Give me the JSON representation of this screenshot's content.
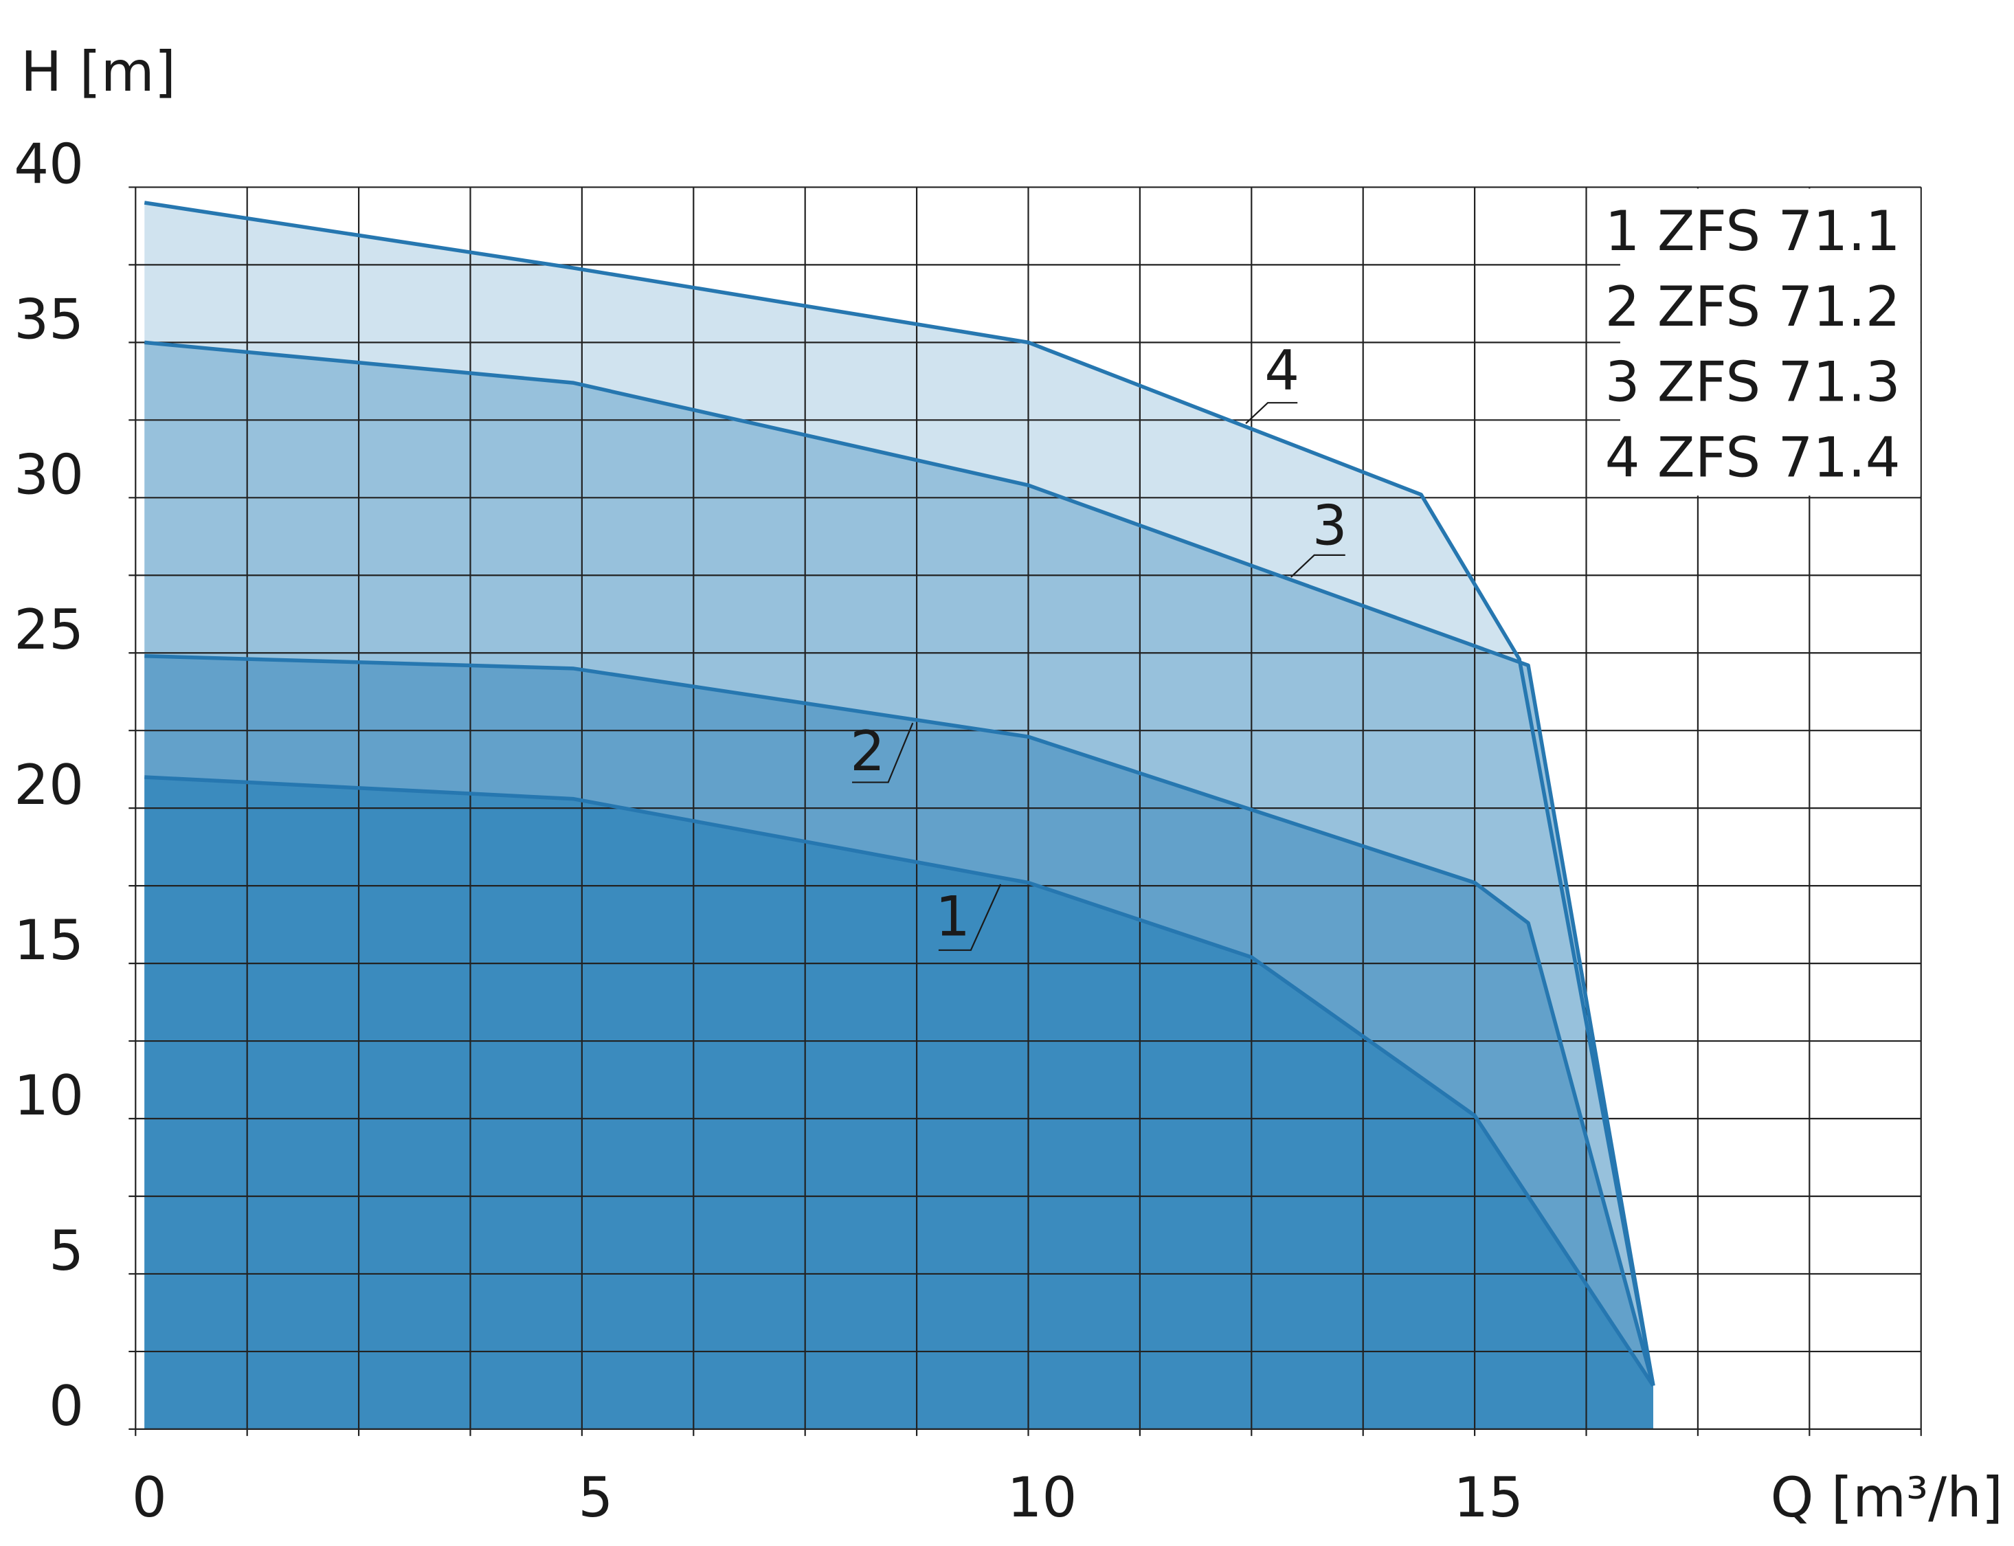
{
  "chart_data": {
    "type": "line",
    "ylabel": "H [m]",
    "xlabel": "Q [m³/h]",
    "xlim": [
      0,
      20
    ],
    "ylim": [
      0,
      40
    ],
    "xticks": [
      0,
      5,
      10,
      15
    ],
    "yticks": [
      0,
      5,
      10,
      15,
      20,
      25,
      30,
      35,
      40
    ],
    "xgrid": [
      0,
      1.25,
      2.5,
      3.75,
      5,
      6.25,
      7.5,
      8.75,
      10,
      11.25,
      12.5,
      13.75,
      15,
      16.25,
      17.5,
      18.75,
      20
    ],
    "ygrid": [
      0,
      2.5,
      5,
      7.5,
      10,
      12.5,
      15,
      17.5,
      20,
      22.5,
      25,
      27.5,
      30,
      32.5,
      35,
      37.5,
      40
    ],
    "grid": true,
    "line_color": "#2677b0",
    "legend": "upper right",
    "series": [
      {
        "name": "1 ZFS 71.1",
        "label": "1",
        "color": "#3b8bbe",
        "x": [
          0.1,
          4.9,
          10,
          12.5,
          15,
          17
        ],
        "values": [
          21,
          20.3,
          17.6,
          15.2,
          10.1,
          1.4
        ]
      },
      {
        "name": "2 ZFS 71.2",
        "label": "2",
        "color": "#63a1ca",
        "x": [
          0.1,
          4.9,
          10,
          15,
          15.6,
          17
        ],
        "values": [
          24.9,
          24.5,
          22.3,
          17.6,
          16.3,
          1.4
        ]
      },
      {
        "name": "3 ZFS 71.3",
        "label": "3",
        "color": "#97c1dc",
        "x": [
          0.1,
          4.9,
          10,
          15.6,
          17
        ],
        "values": [
          35,
          33.7,
          30.4,
          24.6,
          1.4
        ]
      },
      {
        "name": "4 ZFS 71.4",
        "label": "4",
        "color": "#d0e3ef",
        "x": [
          0.1,
          4.9,
          10,
          14.4,
          15.5,
          17
        ],
        "values": [
          39.5,
          37.4,
          35,
          30.1,
          24.8,
          1.4
        ]
      }
    ]
  }
}
